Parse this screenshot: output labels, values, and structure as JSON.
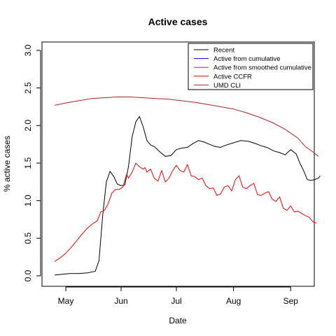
{
  "chart_data": {
    "type": "line",
    "title": "Active cases",
    "xlabel": "Date",
    "ylabel": "% active cases",
    "x_ticks": [
      "May",
      "Jun",
      "Jul",
      "Aug",
      "Sep"
    ],
    "y_ticks": [
      "0.0",
      "0.5",
      "1.0",
      "1.5",
      "2.0",
      "2.5",
      "3.0"
    ],
    "ylim": [
      0,
      3
    ],
    "xlim": [
      "2020-04-22",
      "2020-09-17"
    ],
    "legend_position": "top-right",
    "series": [
      {
        "name": "Recent",
        "color": "#000000",
        "points": [
          [
            "2020-04-25",
            0.01
          ],
          [
            "2020-04-29",
            0.02
          ],
          [
            "2020-05-03",
            0.03
          ],
          [
            "2020-05-08",
            0.03
          ],
          [
            "2020-05-13",
            0.04
          ],
          [
            "2020-05-17",
            0.06
          ],
          [
            "2020-05-19",
            0.2
          ],
          [
            "2020-05-21",
            0.8
          ],
          [
            "2020-05-23",
            1.25
          ],
          [
            "2020-05-25",
            1.39
          ],
          [
            "2020-05-27",
            1.32
          ],
          [
            "2020-05-29",
            1.22
          ],
          [
            "2020-05-31",
            1.2
          ],
          [
            "2020-06-02",
            1.21
          ],
          [
            "2020-06-04",
            1.45
          ],
          [
            "2020-06-06",
            1.85
          ],
          [
            "2020-06-08",
            2.05
          ],
          [
            "2020-06-10",
            2.12
          ],
          [
            "2020-06-12",
            1.98
          ],
          [
            "2020-06-14",
            1.8
          ],
          [
            "2020-06-16",
            1.74
          ],
          [
            "2020-06-18",
            1.72
          ],
          [
            "2020-06-21",
            1.65
          ],
          [
            "2020-06-24",
            1.59
          ],
          [
            "2020-06-27",
            1.6
          ],
          [
            "2020-06-30",
            1.68
          ],
          [
            "2020-07-03",
            1.7
          ],
          [
            "2020-07-06",
            1.71
          ],
          [
            "2020-07-09",
            1.76
          ],
          [
            "2020-07-12",
            1.8
          ],
          [
            "2020-07-15",
            1.78
          ],
          [
            "2020-07-18",
            1.75
          ],
          [
            "2020-07-21",
            1.72
          ],
          [
            "2020-07-24",
            1.71
          ],
          [
            "2020-07-27",
            1.74
          ],
          [
            "2020-07-31",
            1.77
          ],
          [
            "2020-08-04",
            1.8
          ],
          [
            "2020-08-08",
            1.79
          ],
          [
            "2020-08-12",
            1.76
          ],
          [
            "2020-08-15",
            1.73
          ],
          [
            "2020-08-18",
            1.71
          ],
          [
            "2020-08-22",
            1.66
          ],
          [
            "2020-08-25",
            1.64
          ],
          [
            "2020-08-28",
            1.61
          ],
          [
            "2020-08-31",
            1.68
          ],
          [
            "2020-09-03",
            1.62
          ],
          [
            "2020-09-05",
            1.5
          ],
          [
            "2020-09-07",
            1.4
          ],
          [
            "2020-09-09",
            1.28
          ],
          [
            "2020-09-11",
            1.27
          ],
          [
            "2020-09-13",
            1.28
          ],
          [
            "2020-09-15",
            1.3
          ],
          [
            "2020-09-16",
            1.33
          ]
        ]
      },
      {
        "name": "Active from cumulative",
        "color": "#0000ff",
        "points": []
      },
      {
        "name": "Active from smoothed cumulative",
        "color": "#a020f0",
        "points": []
      },
      {
        "name": "Active CCFR",
        "color": "#ff0000",
        "points": [
          [
            "2020-04-25",
            0.19
          ],
          [
            "2020-04-28",
            0.24
          ],
          [
            "2020-05-01",
            0.3
          ],
          [
            "2020-05-04",
            0.38
          ],
          [
            "2020-05-07",
            0.47
          ],
          [
            "2020-05-10",
            0.56
          ],
          [
            "2020-05-13",
            0.64
          ],
          [
            "2020-05-16",
            0.7
          ],
          [
            "2020-05-18",
            0.73
          ],
          [
            "2020-05-20",
            0.85
          ],
          [
            "2020-05-22",
            0.87
          ],
          [
            "2020-05-24",
            0.96
          ],
          [
            "2020-05-26",
            1.1
          ],
          [
            "2020-05-28",
            1.15
          ],
          [
            "2020-05-30",
            1.15
          ],
          [
            "2020-06-01",
            1.18
          ],
          [
            "2020-06-03",
            1.35
          ],
          [
            "2020-06-04",
            1.3
          ],
          [
            "2020-06-06",
            1.38
          ],
          [
            "2020-06-08",
            1.5
          ],
          [
            "2020-06-10",
            1.45
          ],
          [
            "2020-06-12",
            1.42
          ],
          [
            "2020-06-13",
            1.44
          ],
          [
            "2020-06-14",
            1.38
          ],
          [
            "2020-06-16",
            1.42
          ],
          [
            "2020-06-18",
            1.3
          ],
          [
            "2020-06-20",
            1.26
          ],
          [
            "2020-06-22",
            1.4
          ],
          [
            "2020-06-24",
            1.25
          ],
          [
            "2020-06-26",
            1.3
          ],
          [
            "2020-06-28",
            1.4
          ],
          [
            "2020-06-30",
            1.47
          ],
          [
            "2020-07-02",
            1.4
          ],
          [
            "2020-07-04",
            1.38
          ],
          [
            "2020-07-06",
            1.48
          ],
          [
            "2020-07-08",
            1.33
          ],
          [
            "2020-07-10",
            1.32
          ],
          [
            "2020-07-12",
            1.28
          ],
          [
            "2020-07-14",
            1.3
          ],
          [
            "2020-07-16",
            1.2
          ],
          [
            "2020-07-18",
            1.16
          ],
          [
            "2020-07-20",
            1.17
          ],
          [
            "2020-07-22",
            1.07
          ],
          [
            "2020-07-24",
            1.09
          ],
          [
            "2020-07-26",
            1.18
          ],
          [
            "2020-07-28",
            1.2
          ],
          [
            "2020-07-30",
            1.13
          ],
          [
            "2020-08-01",
            1.28
          ],
          [
            "2020-08-03",
            1.33
          ],
          [
            "2020-08-05",
            1.18
          ],
          [
            "2020-08-07",
            1.16
          ],
          [
            "2020-08-09",
            1.2
          ],
          [
            "2020-08-11",
            1.23
          ],
          [
            "2020-08-13",
            1.08
          ],
          [
            "2020-08-15",
            1.07
          ],
          [
            "2020-08-17",
            1.1
          ],
          [
            "2020-08-19",
            1.12
          ],
          [
            "2020-08-21",
            1.02
          ],
          [
            "2020-08-23",
            0.99
          ],
          [
            "2020-08-25",
            1.05
          ],
          [
            "2020-08-27",
            0.9
          ],
          [
            "2020-08-29",
            0.87
          ],
          [
            "2020-08-31",
            0.93
          ],
          [
            "2020-09-02",
            0.85
          ],
          [
            "2020-09-04",
            0.86
          ],
          [
            "2020-09-06",
            0.83
          ],
          [
            "2020-09-08",
            0.8
          ],
          [
            "2020-09-10",
            0.78
          ],
          [
            "2020-09-12",
            0.72
          ],
          [
            "2020-09-14",
            0.7
          ]
        ]
      },
      {
        "name": "UMD CLI",
        "color": "#b22222",
        "points": [
          [
            "2020-04-25",
            2.27
          ],
          [
            "2020-05-01",
            2.3
          ],
          [
            "2020-05-08",
            2.33
          ],
          [
            "2020-05-15",
            2.36
          ],
          [
            "2020-05-22",
            2.37
          ],
          [
            "2020-05-29",
            2.38
          ],
          [
            "2020-06-05",
            2.38
          ],
          [
            "2020-06-12",
            2.37
          ],
          [
            "2020-06-19",
            2.36
          ],
          [
            "2020-06-26",
            2.35
          ],
          [
            "2020-07-03",
            2.33
          ],
          [
            "2020-07-10",
            2.31
          ],
          [
            "2020-07-17",
            2.28
          ],
          [
            "2020-07-24",
            2.25
          ],
          [
            "2020-07-31",
            2.22
          ],
          [
            "2020-08-07",
            2.17
          ],
          [
            "2020-08-14",
            2.11
          ],
          [
            "2020-08-21",
            2.04
          ],
          [
            "2020-08-28",
            1.95
          ],
          [
            "2020-09-04",
            1.83
          ],
          [
            "2020-09-08",
            1.72
          ],
          [
            "2020-09-12",
            1.65
          ],
          [
            "2020-09-15",
            1.59
          ]
        ]
      }
    ]
  }
}
